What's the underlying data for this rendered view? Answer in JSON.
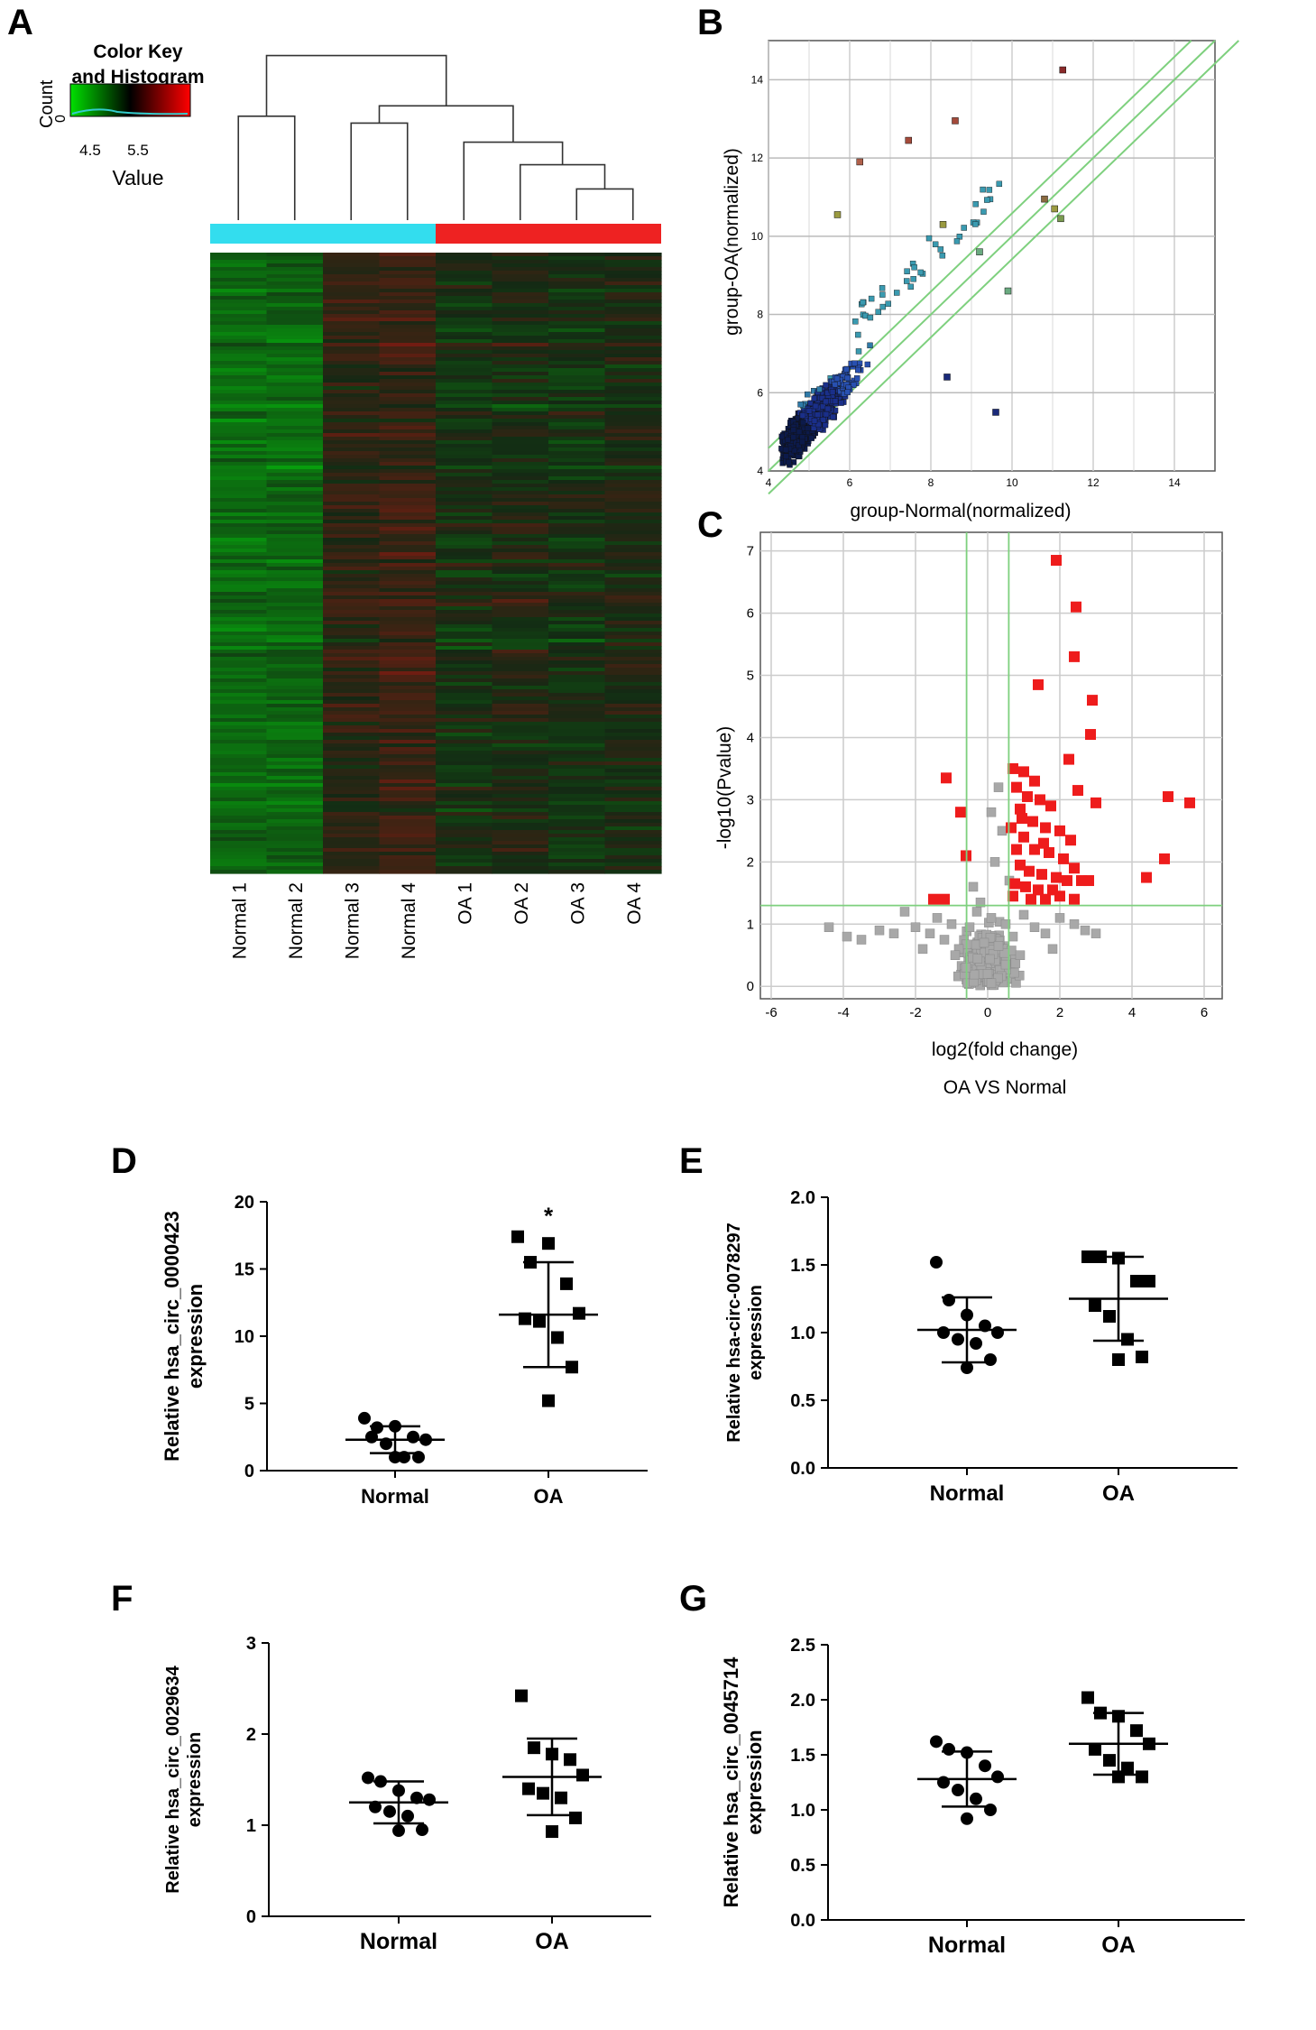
{
  "panel_letters": [
    "A",
    "B",
    "C",
    "D",
    "E",
    "F",
    "G"
  ],
  "chart_data": [
    {
      "panel": "A",
      "type": "heatmap",
      "color_key": {
        "title_line1": "Color Key",
        "title_line2": "and Histogram",
        "count_label": "Count",
        "count_tick": "0",
        "ticks": [
          "4.5",
          "5.5"
        ],
        "value_label": "Value",
        "colors": [
          "#00e000",
          "#000000",
          "#ff0000"
        ]
      },
      "columns": [
        "Normal 1",
        "Normal 2",
        "Normal 3",
        "Normal 4",
        "OA 1",
        "OA 2",
        "OA 3",
        "OA 4"
      ],
      "column_groups": [
        {
          "name": "Normal",
          "color": "#33ddee",
          "count": 4
        },
        {
          "name": "OA",
          "color": "#ee2222",
          "count": 4
        }
      ],
      "column_mean_level": [
        0.3,
        0.32,
        0.55,
        0.58,
        0.48,
        0.5,
        0.47,
        0.5
      ],
      "dendrogram": [
        [
          7,
          8,
          0.18
        ],
        [
          6,
          9,
          0.32
        ],
        [
          5,
          10,
          0.45
        ],
        [
          3,
          4,
          0.56
        ],
        [
          12,
          11,
          0.66
        ],
        [
          1,
          2,
          0.6
        ],
        [
          14,
          13,
          0.95
        ]
      ]
    },
    {
      "panel": "B",
      "type": "scatter",
      "xlabel": "group-Normal(normalized)",
      "ylabel": "group-OA(normalized)",
      "xlim": [
        4,
        15
      ],
      "ylim": [
        4,
        15
      ],
      "xticks": [
        4,
        6,
        8,
        10,
        12,
        14
      ],
      "yticks": [
        4,
        6,
        8,
        10,
        12,
        14
      ],
      "grid": true,
      "fold_lines": {
        "color": "#7ed07e",
        "offsets": [
          -0.585,
          0,
          0.585
        ]
      },
      "highlighted_points": [
        {
          "x": 11.25,
          "y": 14.25,
          "color": "#8a2a2a"
        },
        {
          "x": 8.6,
          "y": 12.95,
          "color": "#a44a3a"
        },
        {
          "x": 7.45,
          "y": 12.45,
          "color": "#a44a3a"
        },
        {
          "x": 6.25,
          "y": 11.9,
          "color": "#b0604a"
        },
        {
          "x": 5.7,
          "y": 10.55,
          "color": "#9a9a40"
        },
        {
          "x": 8.3,
          "y": 10.3,
          "color": "#9a9a40"
        },
        {
          "x": 10.8,
          "y": 10.95,
          "color": "#8a6a40"
        },
        {
          "x": 11.05,
          "y": 10.7,
          "color": "#9a9a40"
        },
        {
          "x": 11.2,
          "y": 10.45,
          "color": "#7a9a50"
        },
        {
          "x": 9.2,
          "y": 9.6,
          "color": "#6aaa80"
        },
        {
          "x": 9.9,
          "y": 8.6,
          "color": "#6aaa80"
        },
        {
          "x": 9.6,
          "y": 5.5,
          "color": "#1a2a7a"
        },
        {
          "x": 8.4,
          "y": 6.4,
          "color": "#1a2a7a"
        }
      ],
      "bulk_cloud_colors": [
        "#0c1a4a",
        "#1a2f8a",
        "#2850b0",
        "#2f7aa8",
        "#3a9ab0"
      ]
    },
    {
      "panel": "C",
      "type": "scatter",
      "title": "OA VS Normal",
      "xlabel": "log2(fold change)",
      "ylabel": "-log10(Pvalue)",
      "xlim": [
        -6.3,
        6.5
      ],
      "ylim": [
        -0.2,
        7.3
      ],
      "xticks": [
        -6,
        -4,
        -2,
        0,
        2,
        4,
        6
      ],
      "yticks": [
        0,
        1,
        2,
        3,
        4,
        5,
        6,
        7
      ],
      "grid": true,
      "thresholds": {
        "x": [
          -0.585,
          0.585
        ],
        "y": 1.3,
        "color": "#7ed07e"
      },
      "series": [
        {
          "color": "#ee1c1c",
          "points": [
            [
              1.9,
              6.85
            ],
            [
              2.45,
              6.1
            ],
            [
              2.4,
              5.3
            ],
            [
              2.9,
              4.6
            ],
            [
              2.85,
              4.05
            ],
            [
              1.4,
              4.85
            ],
            [
              -1.15,
              3.35
            ],
            [
              -0.75,
              2.8
            ],
            [
              -0.6,
              2.1
            ],
            [
              -1.2,
              1.4
            ],
            [
              -1.5,
              1.4
            ],
            [
              0.7,
              3.5
            ],
            [
              1.0,
              3.45
            ],
            [
              1.3,
              3.3
            ],
            [
              2.25,
              3.65
            ],
            [
              2.5,
              3.15
            ],
            [
              3.0,
              2.95
            ],
            [
              5.0,
              3.05
            ],
            [
              5.6,
              2.95
            ],
            [
              4.9,
              2.05
            ],
            [
              4.4,
              1.75
            ],
            [
              0.8,
              3.2
            ],
            [
              1.1,
              3.05
            ],
            [
              0.9,
              2.85
            ],
            [
              1.25,
              2.65
            ],
            [
              1.6,
              2.55
            ],
            [
              2.0,
              2.5
            ],
            [
              1.0,
              2.4
            ],
            [
              0.8,
              2.2
            ],
            [
              1.3,
              2.2
            ],
            [
              1.7,
              2.15
            ],
            [
              2.1,
              2.05
            ],
            [
              2.4,
              1.9
            ],
            [
              0.9,
              1.95
            ],
            [
              1.15,
              1.85
            ],
            [
              1.5,
              1.8
            ],
            [
              1.9,
              1.75
            ],
            [
              2.2,
              1.7
            ],
            [
              2.6,
              1.7
            ],
            [
              0.75,
              1.65
            ],
            [
              1.05,
              1.6
            ],
            [
              1.4,
              1.55
            ],
            [
              1.8,
              1.55
            ],
            [
              2.0,
              1.45
            ],
            [
              2.4,
              1.4
            ],
            [
              0.7,
              1.45
            ],
            [
              1.2,
              1.4
            ],
            [
              1.6,
              1.4
            ],
            [
              2.8,
              1.7
            ],
            [
              0.95,
              2.7
            ],
            [
              1.45,
              3.0
            ],
            [
              1.75,
              2.9
            ],
            [
              0.65,
              2.55
            ],
            [
              2.3,
              2.35
            ],
            [
              1.55,
              2.3
            ]
          ]
        },
        {
          "color": "#a8a8a8",
          "points": [
            [
              -4.4,
              0.95
            ],
            [
              -3.5,
              0.75
            ],
            [
              -2.6,
              0.85
            ],
            [
              -2.3,
              1.2
            ],
            [
              -2.0,
              0.95
            ],
            [
              -1.6,
              0.85
            ],
            [
              -1.4,
              1.1
            ],
            [
              -1.2,
              0.75
            ],
            [
              -1.0,
              1.0
            ],
            [
              -0.8,
              0.6
            ],
            [
              -0.5,
              0.95
            ],
            [
              -0.3,
              1.2
            ],
            [
              -0.1,
              0.7
            ],
            [
              0.1,
              1.1
            ],
            [
              0.3,
              0.65
            ],
            [
              0.5,
              1.0
            ],
            [
              0.7,
              0.8
            ],
            [
              1.0,
              1.15
            ],
            [
              1.3,
              0.95
            ],
            [
              1.6,
              0.85
            ],
            [
              2.0,
              1.1
            ],
            [
              2.4,
              1.0
            ],
            [
              3.0,
              0.85
            ],
            [
              -0.4,
              1.6
            ],
            [
              0.2,
              2.0
            ],
            [
              0.4,
              2.5
            ],
            [
              0.1,
              2.8
            ],
            [
              0.3,
              3.2
            ],
            [
              0.6,
              1.7
            ],
            [
              -0.2,
              1.35
            ],
            [
              0.0,
              0.2
            ],
            [
              0.1,
              0.05
            ],
            [
              -0.6,
              0.3
            ],
            [
              0.5,
              0.35
            ],
            [
              -0.9,
              0.5
            ],
            [
              0.9,
              0.5
            ],
            [
              -1.8,
              0.6
            ],
            [
              1.8,
              0.6
            ],
            [
              -3.0,
              0.9
            ],
            [
              -3.9,
              0.8
            ],
            [
              2.7,
              0.9
            ]
          ]
        }
      ]
    },
    {
      "panel": "D",
      "type": "scatter",
      "ylabel_line1": "Relative hsa_circ_0000423",
      "ylabel_line2": "expression",
      "categories": [
        "Normal",
        "OA"
      ],
      "ylim": [
        0,
        20
      ],
      "yticks": [
        "0",
        "5",
        "10",
        "15",
        "20"
      ],
      "significance": "*",
      "series": [
        {
          "name": "Normal",
          "marker": "circle",
          "mean": 2.3,
          "sd": 1.0,
          "values": [
            3.9,
            3.2,
            3.3,
            2.5,
            2.3,
            2.5,
            2.0,
            1.0,
            1.0,
            1.0
          ]
        },
        {
          "name": "OA",
          "marker": "square",
          "mean": 11.6,
          "sd": 3.9,
          "values": [
            17.4,
            15.5,
            16.9,
            13.9,
            11.7,
            11.3,
            11.1,
            9.9,
            7.7,
            5.2
          ]
        }
      ]
    },
    {
      "panel": "E",
      "type": "scatter",
      "ylabel_line1": "Relative hsa-circ-0078297",
      "ylabel_line2": "expression",
      "categories": [
        "Normal",
        "OA"
      ],
      "ylim": [
        0,
        2.0
      ],
      "yticks": [
        "0.0",
        "0.5",
        "1.0",
        "1.5",
        "2.0"
      ],
      "series": [
        {
          "name": "Normal",
          "marker": "circle",
          "mean": 1.02,
          "sd": 0.24,
          "values": [
            1.52,
            1.24,
            1.13,
            1.05,
            1.0,
            1.0,
            0.95,
            0.92,
            0.8,
            0.74
          ]
        },
        {
          "name": "OA",
          "marker": "square",
          "mean": 1.25,
          "sd": 0.31,
          "values": [
            1.56,
            1.56,
            1.55,
            1.38,
            1.38,
            1.2,
            1.12,
            0.95,
            0.82,
            0.8
          ]
        }
      ]
    },
    {
      "panel": "F",
      "type": "scatter",
      "ylabel_line1": "Relative hsa_circ_0029634",
      "ylabel_line2": "expression",
      "categories": [
        "Normal",
        "OA"
      ],
      "ylim": [
        0,
        3
      ],
      "yticks": [
        "0",
        "1",
        "2",
        "3"
      ],
      "series": [
        {
          "name": "Normal",
          "marker": "circle",
          "mean": 1.25,
          "sd": 0.23,
          "values": [
            1.52,
            1.48,
            1.38,
            1.3,
            1.28,
            1.2,
            1.15,
            1.1,
            0.95,
            0.94
          ]
        },
        {
          "name": "OA",
          "marker": "square",
          "mean": 1.53,
          "sd": 0.42,
          "values": [
            2.42,
            1.85,
            1.78,
            1.72,
            1.55,
            1.4,
            1.35,
            1.3,
            1.08,
            0.93
          ]
        }
      ]
    },
    {
      "panel": "G",
      "type": "scatter",
      "ylabel_line1": "Relative hsa_circ_0045714",
      "ylabel_line2": "expression",
      "categories": [
        "Normal",
        "OA"
      ],
      "ylim": [
        0,
        2.5
      ],
      "yticks": [
        "0.0",
        "0.5",
        "1.0",
        "1.5",
        "2.0",
        "2.5"
      ],
      "series": [
        {
          "name": "Normal",
          "marker": "circle",
          "mean": 1.28,
          "sd": 0.25,
          "values": [
            1.62,
            1.55,
            1.52,
            1.4,
            1.3,
            1.25,
            1.18,
            1.1,
            1.0,
            0.92
          ]
        },
        {
          "name": "OA",
          "marker": "square",
          "mean": 1.6,
          "sd": 0.28,
          "values": [
            2.02,
            1.88,
            1.85,
            1.72,
            1.6,
            1.55,
            1.45,
            1.38,
            1.3,
            1.3
          ]
        }
      ]
    }
  ]
}
